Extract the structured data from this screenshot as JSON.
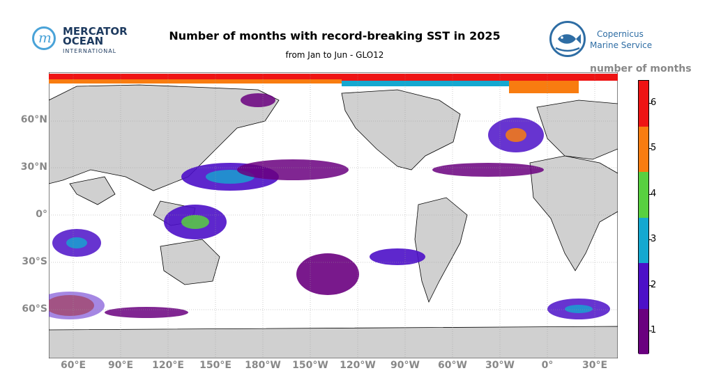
{
  "title": "Number of months with record-breaking SST in 2025",
  "subtitle": "from Jan to Jun - GLO12",
  "logo_left": {
    "line1": "MERCATOR",
    "line2": "OCEAN",
    "line3": "INTERNATIONAL"
  },
  "logo_right": {
    "line1": "Copernicus",
    "line2": "Marine Service"
  },
  "colorbar": {
    "title": "number of months",
    "levels": [
      {
        "label": "1",
        "color": "#6a007f"
      },
      {
        "label": "2",
        "color": "#4c10c8"
      },
      {
        "label": "3",
        "color": "#14a8d0"
      },
      {
        "label": "4",
        "color": "#58d040"
      },
      {
        "label": "5",
        "color": "#f87c10"
      },
      {
        "label": "6",
        "color": "#ee1414"
      }
    ]
  },
  "map": {
    "land_color": "#d0d0d0",
    "ocean_color": "#ffffff",
    "lat_labels": [
      "60°N",
      "30°N",
      "0°",
      "30°S",
      "60°S"
    ],
    "lon_labels": [
      "60°E",
      "90°E",
      "120°E",
      "150°E",
      "180°W",
      "150°W",
      "120°W",
      "90°W",
      "60°W",
      "30°W",
      "0°",
      "30°E"
    ]
  }
}
